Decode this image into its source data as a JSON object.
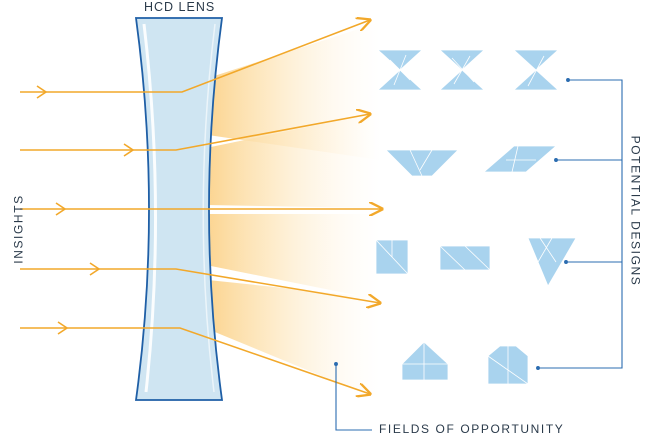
{
  "diagram": {
    "lens_label": "HCD LENS",
    "input_label": "INSIGHTS",
    "output_label": "POTENTIAL DESIGNS",
    "fields_label": "FIELDS OF OPPORTUNITY"
  },
  "colors": {
    "arrow": "#f2a82a",
    "lens_fill": "#cfe5f2",
    "lens_stroke": "#1f5fa6",
    "glow": "#fde3b3",
    "shape_fill": "#a9d3ee",
    "shape_line": "#ffffff",
    "bracket": "#2b6cb0",
    "text": "#2a3a4a"
  },
  "icons": [
    "arrow-icon",
    "tangram-shape-icon"
  ],
  "counts": {
    "insight_arrows": 5,
    "design_rows": 4
  }
}
